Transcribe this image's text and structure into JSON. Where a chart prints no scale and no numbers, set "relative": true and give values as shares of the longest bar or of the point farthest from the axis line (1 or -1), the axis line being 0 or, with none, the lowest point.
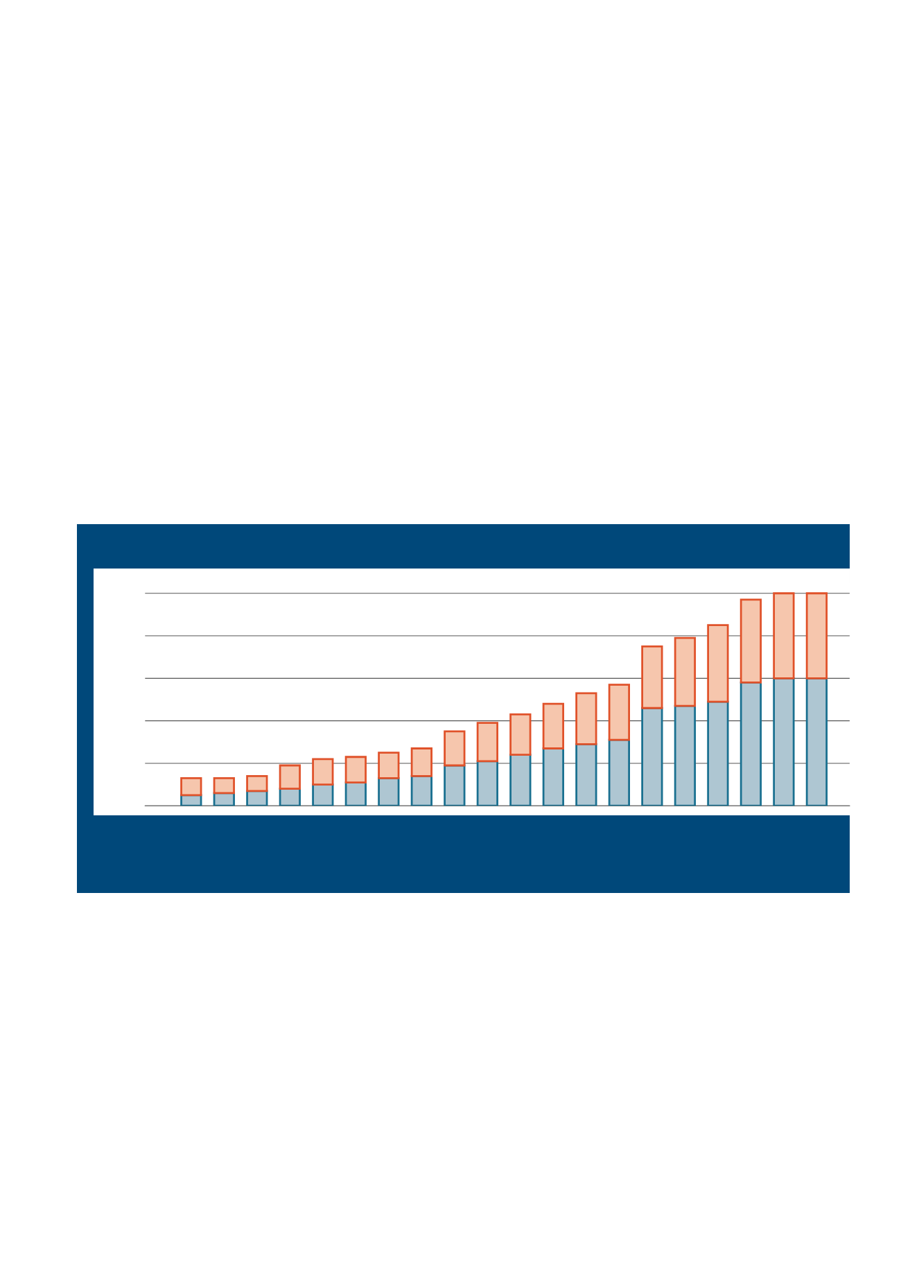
{
  "chart_data": {
    "type": "bar",
    "stacked": true,
    "relative": true,
    "grid": "y",
    "categories": [
      null,
      null,
      null,
      null,
      null,
      null,
      null,
      null,
      null,
      null,
      null,
      null,
      null,
      null,
      null,
      null,
      null,
      null,
      null,
      null
    ],
    "series": [
      {
        "color": "#aec6d2",
        "values": [
          0.05,
          0.06,
          0.07,
          0.08,
          0.1,
          0.11,
          0.13,
          0.14,
          0.19,
          0.21,
          0.24,
          0.27,
          0.29,
          0.31,
          0.46,
          0.47,
          0.49,
          0.58,
          0.6,
          0.6
        ]
      },
      {
        "color": "#f6c6ad",
        "values": [
          0.08,
          0.07,
          0.07,
          0.11,
          0.12,
          0.12,
          0.12,
          0.13,
          0.16,
          0.18,
          0.19,
          0.21,
          0.24,
          0.26,
          0.29,
          0.32,
          0.36,
          0.39,
          0.4,
          0.4
        ]
      }
    ]
  }
}
